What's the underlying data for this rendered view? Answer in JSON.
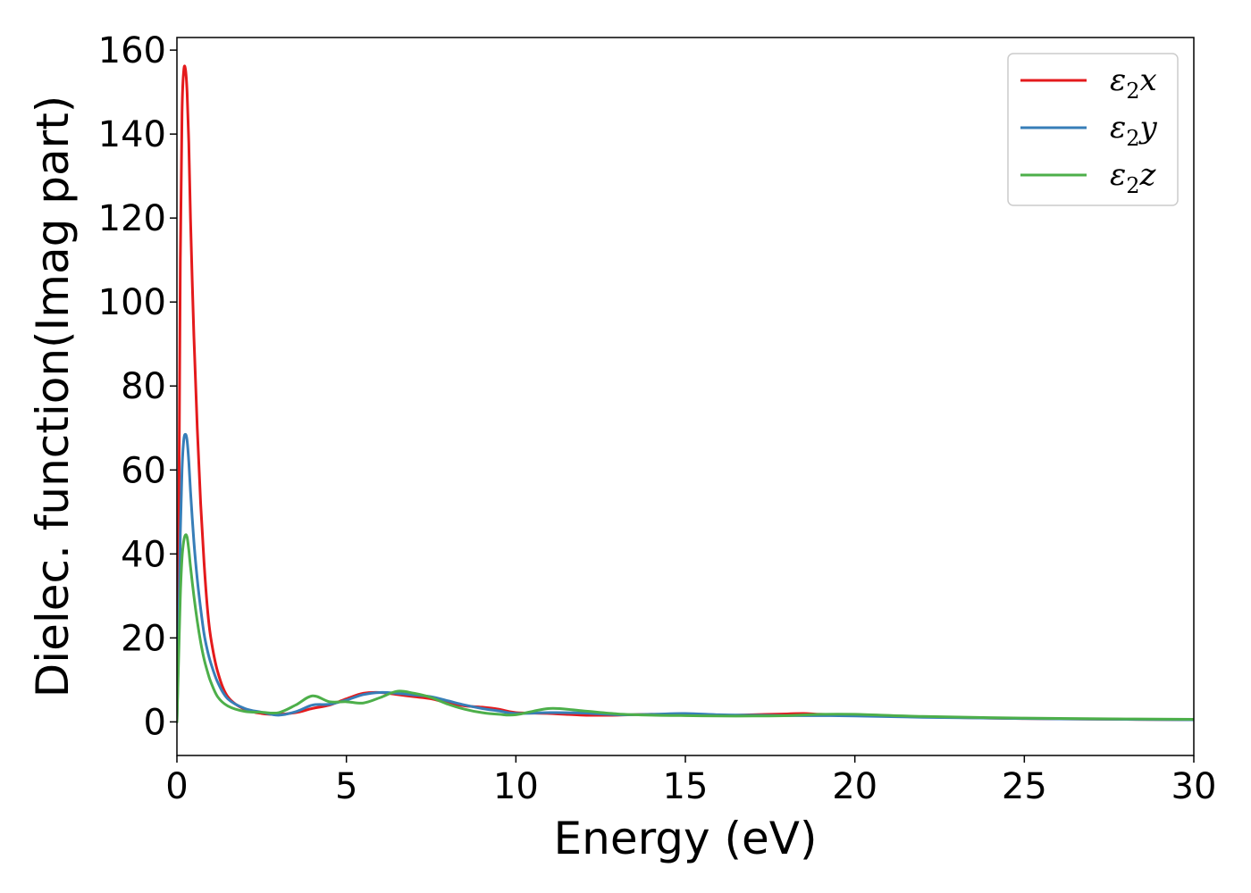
{
  "chart_data": {
    "type": "line",
    "title": "",
    "xlabel": "Energy (eV)",
    "ylabel": "Dielec. function(Imag part)",
    "xlim": [
      0,
      30
    ],
    "ylim": [
      -8,
      163
    ],
    "xticks": [
      0,
      5,
      10,
      15,
      20,
      25,
      30
    ],
    "yticks": [
      0,
      20,
      40,
      60,
      80,
      100,
      120,
      140,
      160
    ],
    "xtick_labels": [
      "0",
      "5",
      "10",
      "15",
      "20",
      "25",
      "30"
    ],
    "ytick_labels": [
      "0",
      "20",
      "40",
      "60",
      "80",
      "100",
      "120",
      "140",
      "160"
    ],
    "grid": false,
    "legend_position": "top-right",
    "series": [
      {
        "name": "ε₂x",
        "legend": {
          "base": "ε",
          "sub": "2",
          "tail": "x"
        },
        "color": "#e41a1c",
        "x": [
          0,
          0.05,
          0.1,
          0.15,
          0.2,
          0.25,
          0.3,
          0.35,
          0.4,
          0.5,
          0.6,
          0.7,
          0.8,
          0.9,
          1.0,
          1.2,
          1.5,
          2.0,
          2.5,
          3.0,
          3.5,
          4.0,
          4.5,
          5.0,
          5.5,
          6.0,
          6.5,
          7.0,
          7.5,
          8.0,
          8.5,
          9.0,
          9.5,
          10.0,
          11.0,
          12.0,
          13.0,
          14.0,
          15.0,
          16.0,
          17.0,
          18.0,
          18.5,
          19.0,
          20.0,
          22.0,
          25.0,
          28.0,
          30.0
        ],
        "y": [
          0,
          40,
          110,
          145,
          155,
          155.5,
          150,
          138,
          120,
          92,
          70,
          52,
          38,
          27,
          20,
          12,
          6,
          3,
          2,
          1.8,
          2.2,
          3.2,
          4,
          5.5,
          6.8,
          7,
          6.5,
          6,
          5.5,
          4.5,
          3.8,
          3.5,
          3,
          2.2,
          2,
          1.6,
          1.6,
          1.8,
          1.6,
          1.5,
          1.7,
          1.9,
          2,
          1.8,
          1.6,
          1.2,
          0.8,
          0.6,
          0.5
        ]
      },
      {
        "name": "ε₂y",
        "legend": {
          "base": "ε",
          "sub": "2",
          "tail": "y"
        },
        "color": "#377eb8",
        "x": [
          0,
          0.05,
          0.1,
          0.15,
          0.2,
          0.25,
          0.3,
          0.35,
          0.4,
          0.5,
          0.6,
          0.7,
          0.8,
          0.9,
          1.0,
          1.2,
          1.5,
          2.0,
          2.5,
          3.0,
          3.5,
          4.0,
          4.5,
          5.0,
          5.5,
          6.0,
          6.5,
          7.0,
          7.5,
          8.0,
          8.5,
          9.0,
          9.5,
          10.0,
          11.0,
          12.0,
          13.0,
          14.0,
          15.0,
          16.0,
          17.0,
          18.0,
          19.0,
          20.0,
          22.0,
          25.0,
          28.0,
          30.0
        ],
        "y": [
          0,
          20,
          45,
          60,
          67,
          68.5,
          67,
          62,
          55,
          43,
          34,
          27,
          21,
          17,
          14,
          9.5,
          5.5,
          3.2,
          2.3,
          1.6,
          2.4,
          4,
          4.2,
          5.2,
          6.5,
          7,
          6.8,
          6.4,
          6,
          5,
          4,
          3.2,
          2.6,
          2,
          2.2,
          2.1,
          1.7,
          1.8,
          2,
          1.7,
          1.6,
          1.5,
          1.5,
          1.4,
          1.1,
          0.8,
          0.6,
          0.5
        ]
      },
      {
        "name": "ε₂z",
        "legend": {
          "base": "ε",
          "sub": "2",
          "tail": "z"
        },
        "color": "#4daf4a",
        "x": [
          0,
          0.05,
          0.1,
          0.15,
          0.2,
          0.25,
          0.3,
          0.35,
          0.4,
          0.5,
          0.6,
          0.7,
          0.8,
          0.9,
          1.0,
          1.2,
          1.5,
          2.0,
          2.5,
          3.0,
          3.5,
          4.0,
          4.5,
          5.0,
          5.5,
          6.0,
          6.5,
          7.0,
          7.5,
          8.0,
          8.5,
          9.0,
          9.5,
          10.0,
          11.0,
          12.0,
          13.0,
          14.0,
          15.0,
          16.0,
          17.0,
          18.0,
          19.0,
          20.0,
          22.0,
          25.0,
          28.0,
          30.0
        ],
        "y": [
          0,
          15,
          30,
          39,
          43,
          44.5,
          44,
          41,
          37,
          30,
          24,
          19,
          15,
          12,
          9.5,
          6,
          3.8,
          2.5,
          2.3,
          2.2,
          4,
          6.2,
          4.8,
          4.8,
          4.5,
          5.8,
          7.3,
          6.8,
          5.8,
          4.2,
          3,
          2.2,
          1.8,
          1.7,
          3.2,
          2.6,
          1.9,
          1.6,
          1.5,
          1.4,
          1.4,
          1.5,
          1.8,
          1.8,
          1.3,
          0.9,
          0.7,
          0.6
        ]
      }
    ]
  }
}
